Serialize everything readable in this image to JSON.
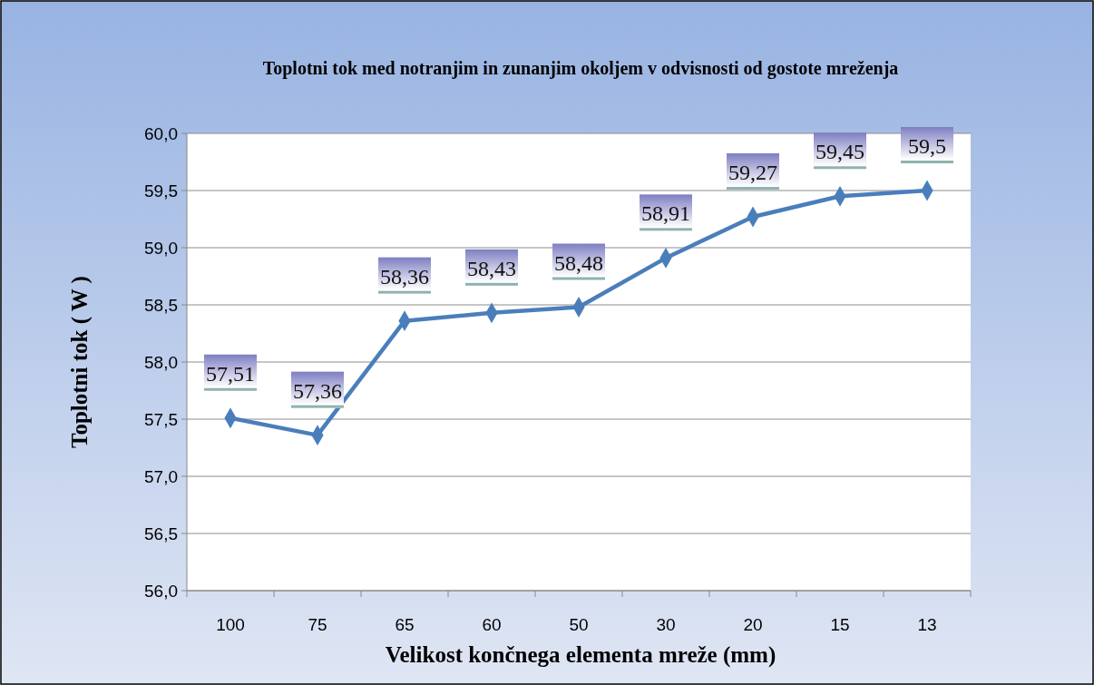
{
  "chart_data": {
    "type": "line",
    "title": "Toplotni tok med notranjim in zunanjim okoljem v odvisnosti od gostote mreženja",
    "xlabel": "Velikost končnega elementa mreže (mm)",
    "ylabel": "Toplotni tok ( W )",
    "categories": [
      "100",
      "75",
      "65",
      "60",
      "50",
      "30",
      "20",
      "15",
      "13"
    ],
    "series": [
      {
        "color": "#4a7ebb",
        "values": [
          57.51,
          57.36,
          58.36,
          58.43,
          58.48,
          58.91,
          59.27,
          59.45,
          59.5
        ],
        "value_labels": [
          "57,51",
          "57,36",
          "58,36",
          "58,43",
          "58,48",
          "58,91",
          "59,27",
          "59,45",
          "59,5"
        ]
      }
    ],
    "ylim": [
      56,
      60
    ],
    "yticks": [
      {
        "value": 56,
        "label": "56,0"
      },
      {
        "value": 56.5,
        "label": "56,5"
      },
      {
        "value": 57,
        "label": "57,0"
      },
      {
        "value": 57.5,
        "label": "57,5"
      },
      {
        "value": 58,
        "label": "58,0"
      },
      {
        "value": 58.5,
        "label": "58,5"
      },
      {
        "value": 59,
        "label": "59,0"
      },
      {
        "value": 59.5,
        "label": "59,5"
      },
      {
        "value": 60,
        "label": "60,0"
      }
    ],
    "grid": "y",
    "marker": "diamond"
  }
}
